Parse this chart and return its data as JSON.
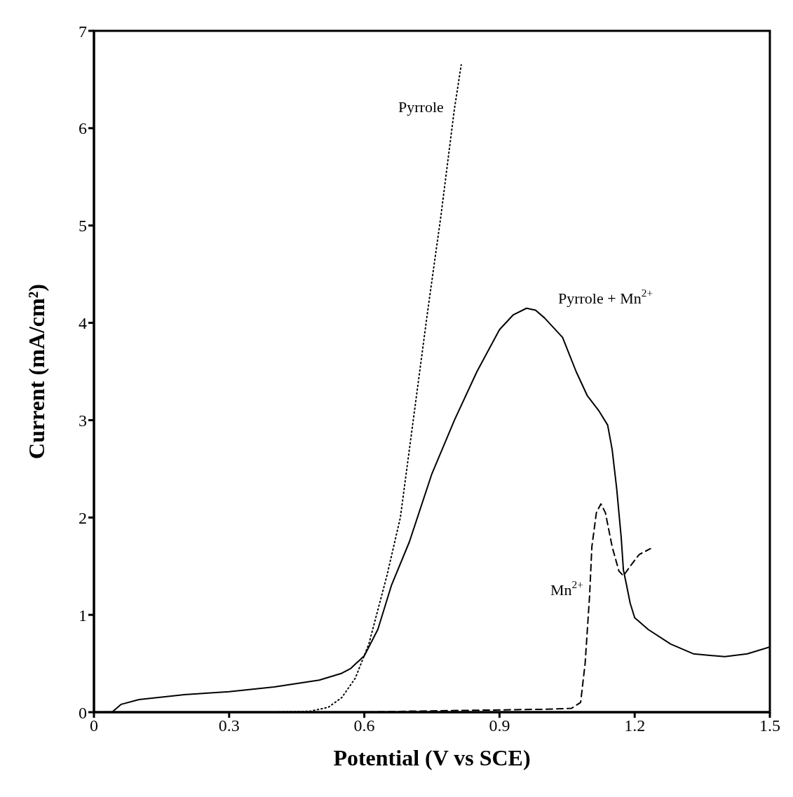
{
  "chart_data": {
    "type": "line",
    "xlabel": "Potential (V vs SCE)",
    "ylabel": "Current (mA/cm²)",
    "xlim": [
      0,
      1.5
    ],
    "xticks": [
      0,
      0.3,
      0.6,
      0.9,
      1.2,
      1.5
    ],
    "ylim": [
      0,
      7
    ],
    "yticks": [
      0,
      1,
      2,
      3,
      4,
      5,
      6,
      7
    ],
    "grid": false,
    "legend": false,
    "marker": "none",
    "series": [
      {
        "name": "Pyrrole + Mn$^{2+}$",
        "color": "#000000",
        "line_style": "solid",
        "x": [
          0.04,
          0.06,
          0.1,
          0.2,
          0.3,
          0.4,
          0.5,
          0.55,
          0.57,
          0.6,
          0.63,
          0.66,
          0.7,
          0.75,
          0.8,
          0.85,
          0.9,
          0.93,
          0.96,
          0.98,
          1.0,
          1.04,
          1.07,
          1.095,
          1.12,
          1.14,
          1.15,
          1.16,
          1.17,
          1.175,
          1.18,
          1.19,
          1.2,
          1.23,
          1.28,
          1.33,
          1.4,
          1.45,
          1.5
        ],
        "values": [
          0,
          0.08,
          0.13,
          0.18,
          0.21,
          0.26,
          0.33,
          0.4,
          0.45,
          0.58,
          0.85,
          1.3,
          1.75,
          2.45,
          3.0,
          3.5,
          3.93,
          4.08,
          4.15,
          4.13,
          4.05,
          3.85,
          3.5,
          3.25,
          3.1,
          2.95,
          2.7,
          2.3,
          1.8,
          1.46,
          1.35,
          1.12,
          0.97,
          0.85,
          0.7,
          0.6,
          0.57,
          0.6,
          0.67
        ]
      },
      {
        "name": "Pyrrole",
        "color": "#000000",
        "line_style": "dotted",
        "x": [
          0,
          0.4,
          0.48,
          0.52,
          0.55,
          0.58,
          0.61,
          0.65,
          0.68,
          0.71,
          0.74,
          0.77,
          0.8,
          0.815
        ],
        "values": [
          0,
          0,
          0.01,
          0.05,
          0.15,
          0.35,
          0.7,
          1.4,
          2.0,
          3.05,
          4.1,
          5.1,
          6.2,
          6.65
        ]
      },
      {
        "name": "Mn$^{2+}$",
        "color": "#000000",
        "line_style": "dashed",
        "x": [
          0,
          0.6,
          0.7,
          0.85,
          1.0,
          1.06,
          1.08,
          1.09,
          1.1,
          1.105,
          1.115,
          1.125,
          1.135,
          1.15,
          1.165,
          1.175,
          1.19,
          1.21,
          1.235
        ],
        "values": [
          0,
          0,
          0.01,
          0.02,
          0.03,
          0.04,
          0.1,
          0.5,
          1.2,
          1.7,
          2.05,
          2.14,
          2.05,
          1.7,
          1.45,
          1.4,
          1.5,
          1.62,
          1.68
        ]
      }
    ]
  }
}
